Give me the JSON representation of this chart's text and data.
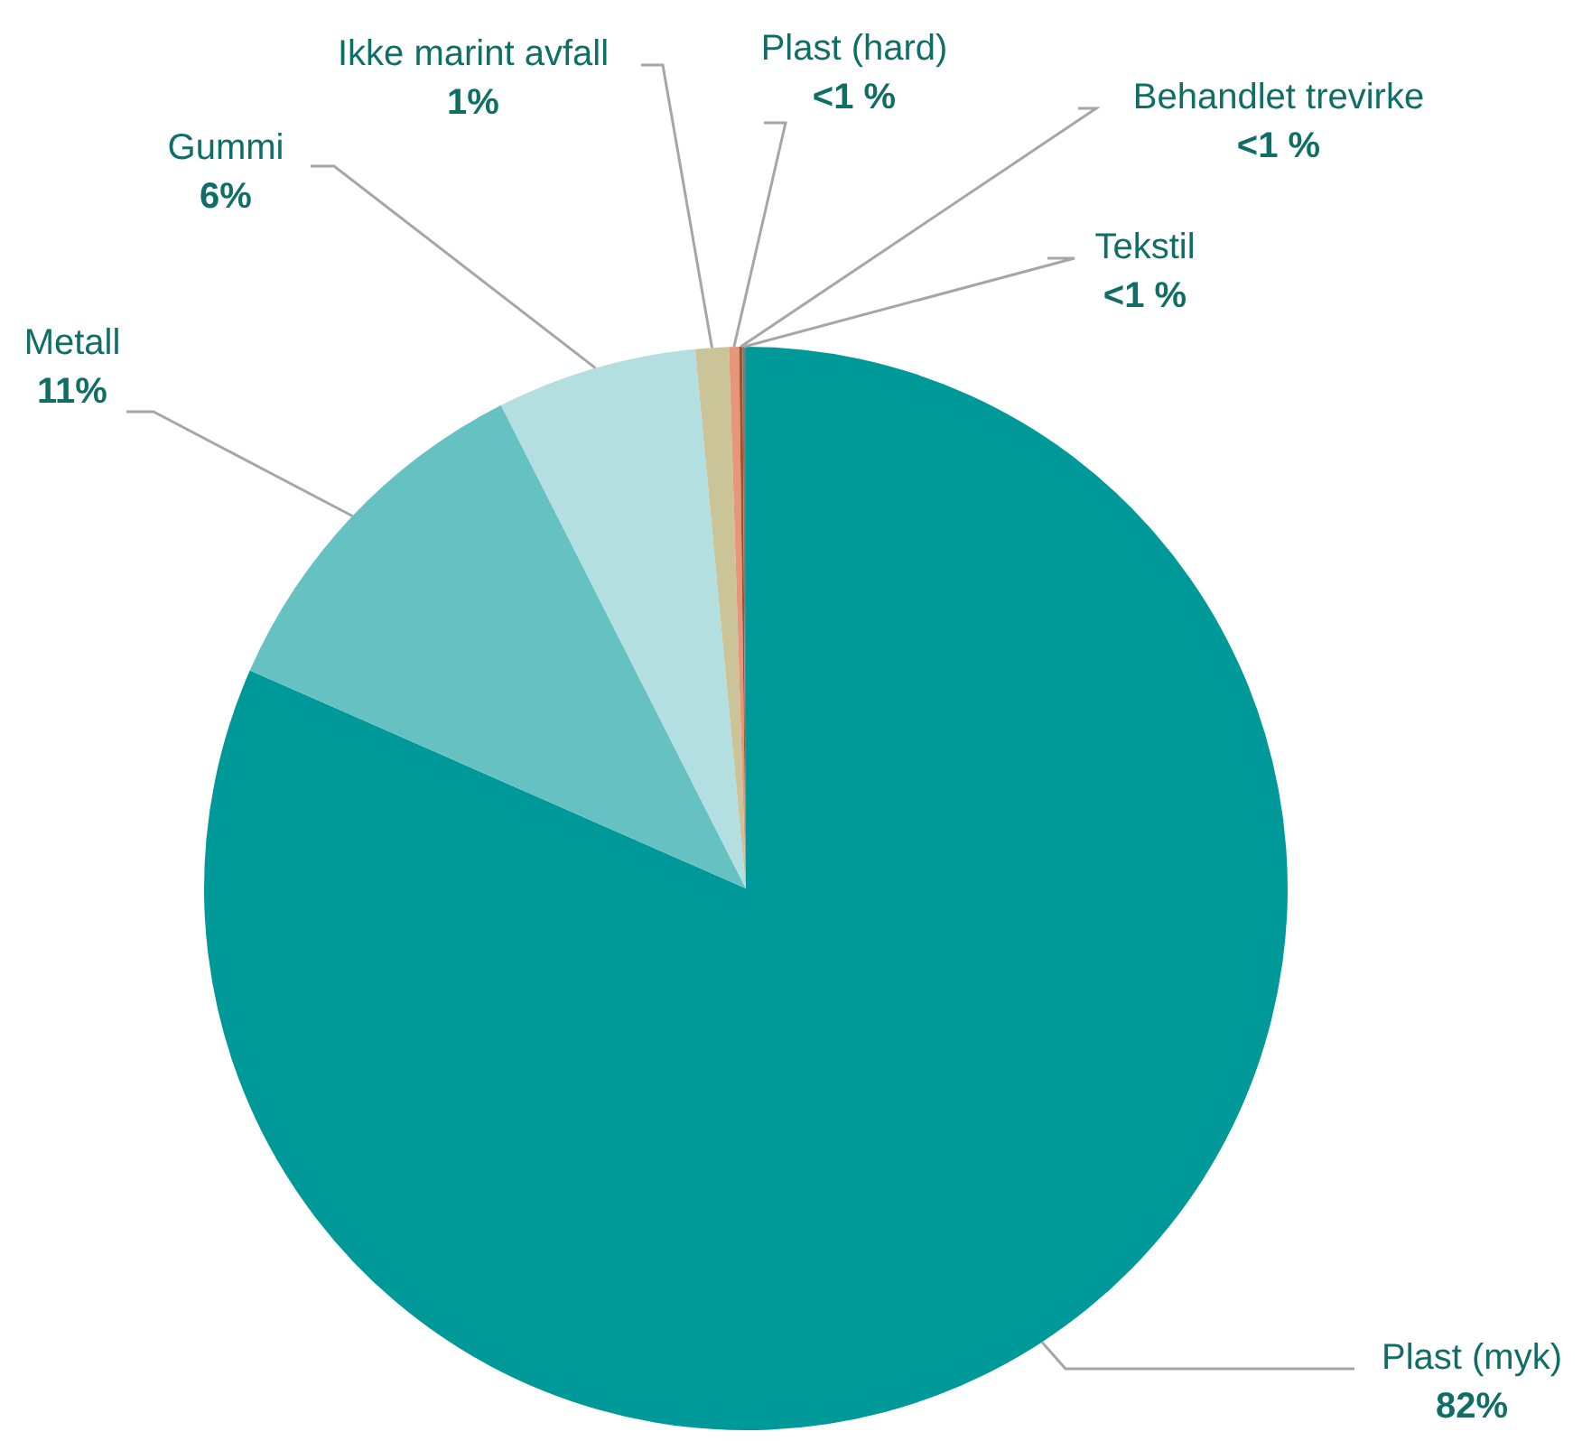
{
  "chart_data": {
    "type": "pie",
    "categories": [
      "Plast (myk)",
      "Metall",
      "Gummi",
      "Ikke marint avfall",
      "Plast (hard)",
      "Behandlet trevirke",
      "Tekstil"
    ],
    "values": [
      82,
      11,
      6,
      1,
      0.3,
      0.1,
      0.1
    ],
    "value_labels": [
      "82%",
      "11%",
      "6%",
      "1%",
      "<1 %",
      "<1 %",
      "<1 %"
    ],
    "colors": [
      "#009999",
      "#66c2c2",
      "#b3dfe0",
      "#cbc498",
      "#e8967a",
      "#a0522d",
      "#7a7a7a"
    ],
    "legend": false
  }
}
